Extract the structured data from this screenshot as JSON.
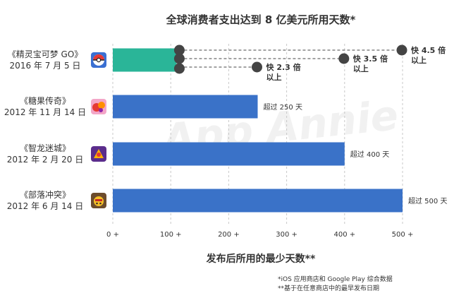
{
  "chart_data": {
    "type": "bar",
    "orientation": "horizontal",
    "title": "全球消费者支出达到 8 亿美元所用天数*",
    "xlabel": "发布后所用的最少天数**",
    "xlim": [
      0,
      500
    ],
    "xticks": [
      "0 +",
      "100 +",
      "200 +",
      "300 +",
      "400 +",
      "500 +"
    ],
    "grid": "vertical dashed",
    "categories": [
      {
        "name": "《精灵宝可梦 GO》",
        "date": "2016 年 7 月 5 日",
        "icon": "pokemon-go-icon",
        "value": 110,
        "value_label": "",
        "color": "#2ab598"
      },
      {
        "name": "《糖果传奇》",
        "date": "2012 年 11 月 14 日",
        "icon": "candy-crush-icon",
        "value": 250,
        "value_label": "超过 250 天",
        "color": "#3a72c8"
      },
      {
        "name": "《智龙迷城》",
        "date": "2012 年 2 月 20 日",
        "icon": "puzzle-dragons-icon",
        "value": 400,
        "value_label": "超过 400 天",
        "color": "#3a72c8"
      },
      {
        "name": "《部落冲突》",
        "date": "2012 年 6 月 14 日",
        "icon": "clash-of-clans-icon",
        "value": 500,
        "value_label": "超过 500 天",
        "color": "#3a72c8"
      }
    ],
    "annotations": [
      {
        "line1": "快 4.5 倍",
        "line2": "以上",
        "x": 500
      },
      {
        "line1": "快 3.5 倍",
        "line2": "以上",
        "x": 400
      },
      {
        "line1": "快 2.3 倍",
        "line2": "以上",
        "x": 250
      }
    ],
    "footnotes": [
      "*iOS 应用商店和 Google Play 综合数据",
      "**基于在任意商店中的最早发布日期"
    ],
    "watermark": "App Annie"
  }
}
